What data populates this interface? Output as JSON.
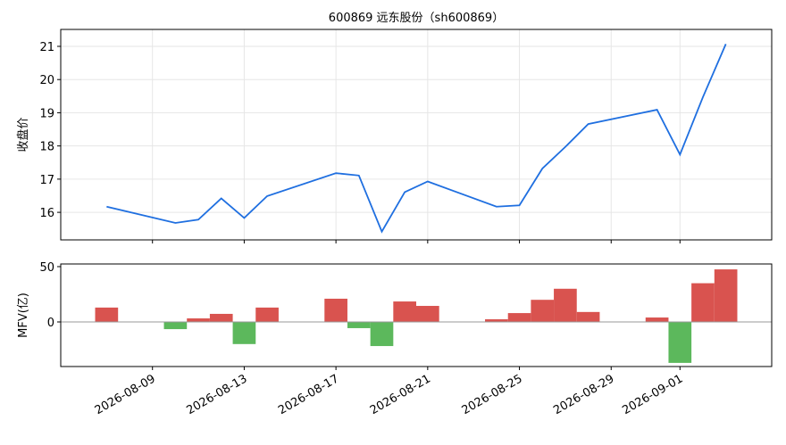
{
  "chart_data": [
    {
      "type": "line",
      "title": "600869 远东股份（sh600869）",
      "y_label": "收盘价",
      "color": "#1f6fe0",
      "grid": true,
      "x": [
        "2026-08-07",
        "2026-08-10",
        "2026-08-11",
        "2026-08-12",
        "2026-08-13",
        "2026-08-14",
        "2026-08-17",
        "2026-08-18",
        "2026-08-19",
        "2026-08-20",
        "2026-08-21",
        "2026-08-24",
        "2026-08-25",
        "2026-08-26",
        "2026-08-27",
        "2026-08-28",
        "2026-08-31",
        "2026-09-01",
        "2026-09-02",
        "2026-09-03"
      ],
      "values": [
        16.17,
        15.68,
        15.78,
        16.42,
        15.83,
        16.49,
        17.18,
        17.11,
        15.42,
        16.61,
        16.93,
        16.17,
        16.21,
        17.32,
        17.97,
        18.66,
        19.09,
        17.74,
        19.47,
        21.07
      ],
      "xlim": [
        "2026-08-05",
        "2026-09-05"
      ],
      "xticks": [
        "2026-08-09",
        "2026-08-13",
        "2026-08-17",
        "2026-08-21",
        "2026-08-25",
        "2026-08-29",
        "2026-09-01"
      ],
      "ylim": [
        15.17,
        21.51
      ],
      "yticks": [
        16,
        17,
        18,
        19,
        20,
        21
      ]
    },
    {
      "type": "bar",
      "y_label": "MFV(亿)",
      "colors": {
        "positive": "#d9534f",
        "negative": "#5cb85c"
      },
      "grid": false,
      "x": [
        "2026-08-07",
        "2026-08-10",
        "2026-08-11",
        "2026-08-12",
        "2026-08-13",
        "2026-08-14",
        "2026-08-17",
        "2026-08-18",
        "2026-08-19",
        "2026-08-20",
        "2026-08-21",
        "2026-08-24",
        "2026-08-25",
        "2026-08-26",
        "2026-08-27",
        "2026-08-28",
        "2026-08-31",
        "2026-09-01",
        "2026-09-02",
        "2026-09-03"
      ],
      "values": [
        13,
        -6.5,
        3.2,
        7.3,
        -20,
        13,
        21,
        -5.6,
        -21.8,
        18.5,
        14.5,
        2.4,
        8,
        20,
        30,
        9,
        4,
        -37,
        35,
        47.5
      ],
      "xlim": [
        "2026-08-05",
        "2026-09-05"
      ],
      "xticks": [
        "2026-08-09",
        "2026-08-13",
        "2026-08-17",
        "2026-08-21",
        "2026-08-25",
        "2026-08-29",
        "2026-09-01"
      ],
      "ylim": [
        -40.3,
        52.4
      ],
      "yticks": [
        0,
        50
      ]
    }
  ]
}
